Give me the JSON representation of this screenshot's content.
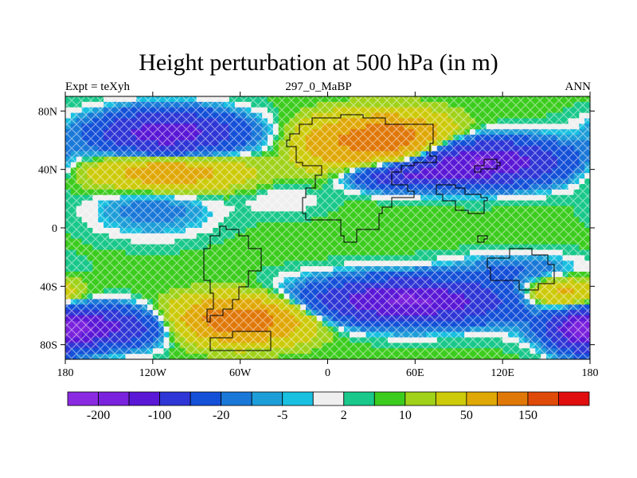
{
  "chart_data": {
    "type": "heatmap",
    "title": "Height perturbation at 500 hPa (in m)",
    "subtitle_left": "Expt = teXyh",
    "subtitle_center": "297_0_MaBP",
    "subtitle_right": "ANN",
    "x_range": [
      -180,
      180
    ],
    "y_range": [
      -90,
      90
    ],
    "x_ticks": [
      {
        "value": -180,
        "label": "180"
      },
      {
        "value": -120,
        "label": "120W"
      },
      {
        "value": -60,
        "label": "60W"
      },
      {
        "value": 0,
        "label": "0"
      },
      {
        "value": 60,
        "label": "60E"
      },
      {
        "value": 120,
        "label": "120E"
      },
      {
        "value": 180,
        "label": "180"
      }
    ],
    "y_ticks": [
      {
        "value": 80,
        "label": "80N"
      },
      {
        "value": 40,
        "label": "40N"
      },
      {
        "value": 0,
        "label": "0"
      },
      {
        "value": -40,
        "label": "40S"
      },
      {
        "value": -80,
        "label": "80S"
      }
    ],
    "colorbar": {
      "colors": [
        "#8a2be2",
        "#7a22dd",
        "#5a18d6",
        "#2f36d6",
        "#1450d8",
        "#1a78d8",
        "#1e9ed8",
        "#19c0e0",
        "#efefef",
        "#19c88a",
        "#3ccc1e",
        "#a0d21a",
        "#cdca0a",
        "#e0a806",
        "#e07808",
        "#e04a08",
        "#e00e0e"
      ],
      "levels": [
        -200,
        -150,
        -100,
        -50,
        -20,
        -10,
        -5,
        -2,
        2,
        5,
        10,
        20,
        50,
        100,
        150,
        200
      ],
      "labels": [
        {
          "level": -200,
          "text": "-200"
        },
        {
          "level": -100,
          "text": "-100"
        },
        {
          "level": -20,
          "text": "-20"
        },
        {
          "level": -5,
          "text": "-5"
        },
        {
          "level": 2,
          "text": "2"
        },
        {
          "level": 10,
          "text": "10"
        },
        {
          "level": 50,
          "text": "50"
        },
        {
          "level": 150,
          "text": "150"
        }
      ]
    },
    "anomalies": [
      {
        "lon": -110,
        "lat": 65,
        "sigma_lon": 32,
        "sigma_lat": 10,
        "amp": -140
      },
      {
        "lon": -110,
        "lat": 38,
        "sigma_lon": 34,
        "sigma_lat": 8,
        "amp": 75
      },
      {
        "lon": -120,
        "lat": 12,
        "sigma_lon": 28,
        "sigma_lat": 12,
        "amp": -22
      },
      {
        "lon": 40,
        "lat": 60,
        "sigma_lon": 28,
        "sigma_lat": 11,
        "amp": 150
      },
      {
        "lon": 105,
        "lat": 45,
        "sigma_lon": 36,
        "sigma_lat": 10,
        "amp": -165
      },
      {
        "lon": 50,
        "lat": 35,
        "sigma_lon": 22,
        "sigma_lat": 6,
        "amp": -80
      },
      {
        "lon": 55,
        "lat": -50,
        "sigma_lon": 45,
        "sigma_lat": 10,
        "amp": -165
      },
      {
        "lon": -60,
        "lat": -63,
        "sigma_lon": 30,
        "sigma_lat": 10,
        "amp": 140
      },
      {
        "lon": -160,
        "lat": -68,
        "sigma_lon": 30,
        "sigma_lat": 9,
        "amp": -130
      },
      {
        "lon": 175,
        "lat": -72,
        "sigma_lon": 14,
        "sigma_lat": 9,
        "amp": -110
      },
      {
        "lon": 160,
        "lat": -45,
        "sigma_lon": 18,
        "sigma_lat": 7,
        "amp": 60
      },
      {
        "lon": 130,
        "lat": -28,
        "sigma_lon": 28,
        "sigma_lat": 7,
        "amp": -25
      },
      {
        "lon": -5,
        "lat": 55,
        "sigma_lon": 14,
        "sigma_lat": 12,
        "amp": 30
      },
      {
        "lon": -30,
        "lat": 20,
        "sigma_lon": 20,
        "sigma_lat": 8,
        "amp": -8
      }
    ],
    "land_outlines": [
      [
        [
          -20,
          70
        ],
        [
          -10,
          75
        ],
        [
          10,
          78
        ],
        [
          25,
          75
        ],
        [
          40,
          70
        ],
        [
          55,
          72
        ],
        [
          70,
          70
        ],
        [
          72,
          58
        ],
        [
          70,
          50
        ],
        [
          74,
          45
        ],
        [
          60,
          42
        ],
        [
          50,
          38
        ],
        [
          45,
          30
        ],
        [
          55,
          25
        ],
        [
          60,
          20
        ],
        [
          45,
          15
        ],
        [
          38,
          10
        ],
        [
          35,
          0
        ],
        [
          20,
          -10
        ],
        [
          12,
          -5
        ],
        [
          8,
          5
        ],
        [
          -5,
          5
        ],
        [
          -15,
          10
        ],
        [
          -18,
          20
        ],
        [
          -15,
          28
        ],
        [
          -8,
          35
        ],
        [
          -5,
          42
        ],
        [
          -18,
          45
        ],
        [
          -22,
          55
        ],
        [
          -28,
          60
        ],
        [
          -25,
          65
        ],
        [
          -20,
          70
        ]
      ],
      [
        [
          -85,
          -15
        ],
        [
          -80,
          -5
        ],
        [
          -75,
          2
        ],
        [
          -70,
          0
        ],
        [
          -62,
          -5
        ],
        [
          -55,
          -15
        ],
        [
          -45,
          -22
        ],
        [
          -45,
          -30
        ],
        [
          -55,
          -40
        ],
        [
          -60,
          -48
        ],
        [
          -65,
          -55
        ],
        [
          -72,
          -60
        ],
        [
          -80,
          -65
        ],
        [
          -82,
          -55
        ],
        [
          -78,
          -45
        ],
        [
          -80,
          -35
        ],
        [
          -85,
          -25
        ],
        [
          -85,
          -15
        ]
      ],
      [
        [
          -65,
          -70
        ],
        [
          -55,
          -70
        ],
        [
          -40,
          -72
        ],
        [
          -38,
          -83
        ],
        [
          -80,
          -83
        ],
        [
          -80,
          -75
        ],
        [
          -65,
          -70
        ]
      ],
      [
        [
          100,
          42
        ],
        [
          108,
          48
        ],
        [
          115,
          45
        ],
        [
          118,
          42
        ],
        [
          115,
          40
        ],
        [
          106,
          38
        ],
        [
          100,
          42
        ]
      ],
      [
        [
          75,
          30
        ],
        [
          88,
          28
        ],
        [
          95,
          22
        ],
        [
          105,
          20
        ],
        [
          110,
          18
        ],
        [
          108,
          10
        ],
        [
          96,
          12
        ],
        [
          88,
          18
        ],
        [
          78,
          22
        ],
        [
          75,
          30
        ]
      ],
      [
        [
          102,
          -5
        ],
        [
          110,
          -8
        ],
        [
          108,
          -10
        ],
        [
          102,
          -8
        ],
        [
          102,
          -5
        ]
      ],
      [
        [
          110,
          -20
        ],
        [
          125,
          -15
        ],
        [
          140,
          -18
        ],
        [
          152,
          -25
        ],
        [
          155,
          -38
        ],
        [
          145,
          -42
        ],
        [
          132,
          -35
        ],
        [
          118,
          -35
        ],
        [
          112,
          -28
        ],
        [
          110,
          -20
        ]
      ]
    ]
  }
}
